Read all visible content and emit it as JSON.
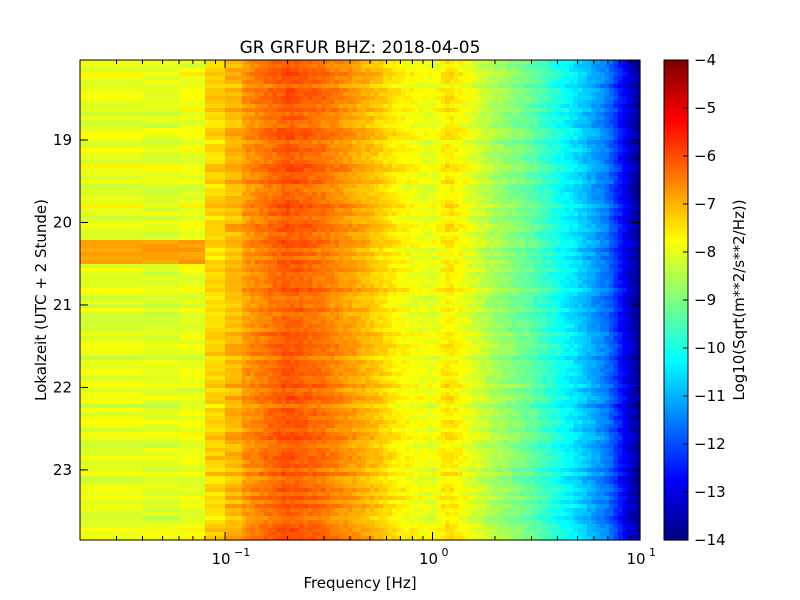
{
  "chart_data": {
    "type": "heatmap",
    "title": "GR GRFUR BHZ: 2018-04-05",
    "xlabel": "Frequency [Hz]",
    "ylabel": "Lokalzeit (UTC + 2 Stunde)",
    "x_scale": "log",
    "xlim": [
      0.02,
      10
    ],
    "x_ticks": [
      {
        "value": 0.1,
        "base": "10",
        "exp": "−1"
      },
      {
        "value": 1,
        "base": "10",
        "exp": "0"
      },
      {
        "value": 10,
        "base": "10",
        "exp": "1"
      }
    ],
    "ylim": [
      18.03,
      23.85
    ],
    "y_ticks": [
      "19",
      "20",
      "21",
      "22",
      "23"
    ],
    "colorbar": {
      "label": "Log10(Sqrt(m**2/s**2/Hz))",
      "colormap": "jet",
      "range": [
        -14,
        -4
      ],
      "ticks": [
        "−4",
        "−5",
        "−6",
        "−7",
        "−8",
        "−9",
        "−10",
        "−11",
        "−12",
        "−13",
        "−14"
      ]
    },
    "frequency_bins_hz": [
      0.02,
      0.04,
      0.06,
      0.08,
      0.12,
      0.2,
      0.3,
      0.5,
      0.7,
      1.0,
      1.2,
      2,
      3,
      5,
      7,
      9,
      10
    ],
    "typical_level_by_frequency": [
      -7.9,
      -8.1,
      -8.0,
      -7.9,
      -6.8,
      -6.1,
      -6.4,
      -7.1,
      -7.7,
      -8.0,
      -7.5,
      -8.6,
      -9.3,
      -10.6,
      -11.6,
      -13.3,
      -13.9
    ],
    "notable_features": [
      {
        "time_range": [
          20.2,
          20.5
        ],
        "freq_range_hz": [
          0.02,
          0.09
        ],
        "level": -6.8
      }
    ]
  }
}
